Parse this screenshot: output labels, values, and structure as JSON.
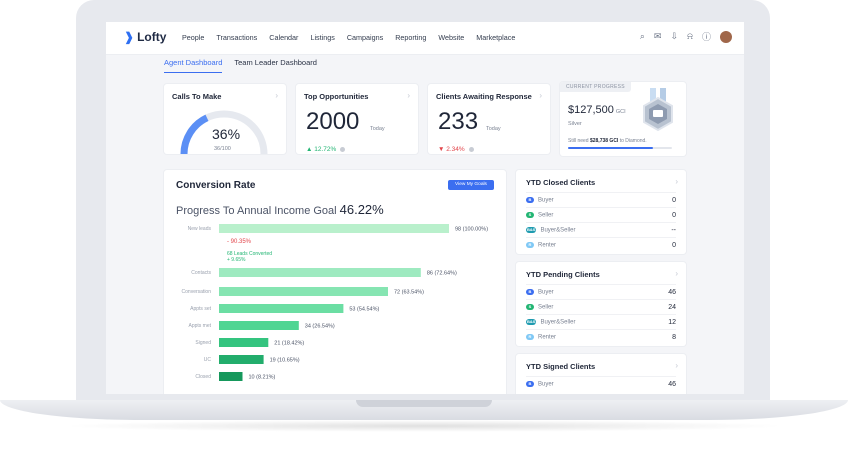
{
  "nav": {
    "logo": "Lofty",
    "items": [
      "People",
      "Transactions",
      "Calendar",
      "Listings",
      "Campaigns",
      "Reporting",
      "Website",
      "Marketplace"
    ]
  },
  "tabs": [
    {
      "label": "Agent Dashboard",
      "active": true
    },
    {
      "label": "Team Leader Dashboard",
      "active": false
    }
  ],
  "calls": {
    "title": "Calls To Make",
    "percent": "36%",
    "sub": "36/100",
    "fraction": 0.36
  },
  "opportunities": {
    "title": "Top Opportunities",
    "value": "2000",
    "period": "Today",
    "delta": "▲ 12.72%"
  },
  "awaiting": {
    "title": "Clients Awaiting Response",
    "value": "233",
    "period": "Today",
    "delta": "▼ 2.34%"
  },
  "progress": {
    "label": "CURRENT PROGRESS",
    "value": "$127,500",
    "unit": "GCI",
    "tier": "Silver",
    "need_prefix": "Still need",
    "need_amount": "$28,738 GCI",
    "need_suffix": "to Diamond.",
    "fraction": 0.82
  },
  "conversion": {
    "title": "Conversion Rate",
    "button": "View My Goals",
    "goal_label": "Progress To Annual Income Goal",
    "goal_pct": "46.22%",
    "drop": "- 90.35%",
    "converted_label": "68 Leads Converted",
    "converted_pct": "+ 9.65%",
    "stages": [
      {
        "name": "New leads",
        "value": 98,
        "label": "98 (100.00%)"
      },
      {
        "name": "Contacts",
        "value": 86,
        "label": "86  (72.64%)"
      },
      {
        "name": "Conversation",
        "value": 72,
        "label": "72 (63.54%)"
      },
      {
        "name": "Appts set",
        "value": 53,
        "label": "53 (54.54%)"
      },
      {
        "name": "Appts met",
        "value": 34,
        "label": "34 (26.54%)"
      },
      {
        "name": "Signed",
        "value": 21,
        "label": "21 (18.42%)"
      },
      {
        "name": "UC",
        "value": 19,
        "label": "19 (10.65%)"
      },
      {
        "name": "Closed",
        "value": 10,
        "label": "10 (8.21%)"
      }
    ]
  },
  "ytd_closed": {
    "title": "YTD Closed Clients",
    "rows": [
      {
        "icon": "B",
        "label": "Buyer",
        "value": "0",
        "color": "#3b6ef0"
      },
      {
        "icon": "S",
        "label": "Seller",
        "value": "0",
        "color": "#22b573"
      },
      {
        "icon": "B&S",
        "label": "Buyer&Seller",
        "value": "--",
        "color": "#1f9bb0"
      },
      {
        "icon": "R",
        "label": "Renter",
        "value": "0",
        "color": "#7fc8f5"
      }
    ]
  },
  "ytd_pending": {
    "title": "YTD Pending Clients",
    "rows": [
      {
        "icon": "B",
        "label": "Buyer",
        "value": "46",
        "color": "#3b6ef0"
      },
      {
        "icon": "S",
        "label": "Seller",
        "value": "24",
        "color": "#22b573"
      },
      {
        "icon": "B&S",
        "label": "Buyer&Seller",
        "value": "12",
        "color": "#1f9bb0"
      },
      {
        "icon": "R",
        "label": "Renter",
        "value": "8",
        "color": "#7fc8f5"
      }
    ]
  },
  "ytd_signed": {
    "title": "YTD Signed Clients",
    "rows": [
      {
        "icon": "B",
        "label": "Buyer",
        "value": "46",
        "color": "#3b6ef0"
      }
    ]
  }
}
